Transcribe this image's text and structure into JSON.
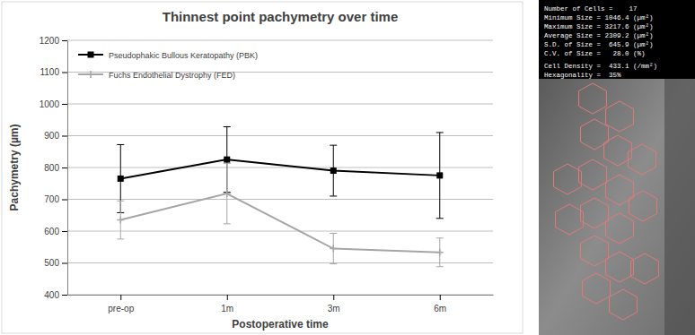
{
  "chart_data": {
    "type": "line",
    "title": "Thinnest point pachymetry over time",
    "x_label": "Postoperative time",
    "y_label": "Pachymetry (µm)",
    "categories": [
      "pre-op",
      "1m",
      "3m",
      "6m"
    ],
    "series": [
      {
        "name": "Pseudophakic Bullous Keratopathy (PBK)",
        "color": "#000000",
        "marker": "square",
        "line_style": "solid",
        "values": [
          765,
          825,
          790,
          775
        ],
        "errors": [
          107,
          103,
          80,
          135
        ]
      },
      {
        "name": "Fuchs Endothelial Dystrophy (FED)",
        "color": "#a6a6a6",
        "marker": "plus",
        "line_style": "solid",
        "values": [
          635,
          718,
          545,
          533
        ],
        "errors": [
          60,
          95,
          48,
          45
        ]
      }
    ],
    "ylim": [
      400,
      1200
    ],
    "yticks": [
      400,
      500,
      600,
      700,
      800,
      900,
      1000,
      1100,
      1200
    ],
    "grid": true,
    "legend": "upper left"
  },
  "image_panel": {
    "lines": [
      "Number of Cells =    17",
      "Minimum Size = 1046.4 (µm²)",
      "Maximum Size = 3217.6 (µm²)",
      "Average Size = 2309.2 (µm²)",
      "S.D. of Size =  645.9 (µm²)",
      "C.V. of Size =   28.0 (%)",
      "Cell Density =  433.1 (/mm²)",
      "Hexagonality =  35%"
    ]
  }
}
